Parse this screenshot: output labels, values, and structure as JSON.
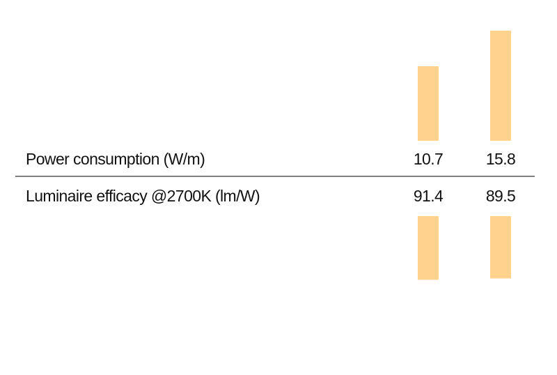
{
  "rows": [
    {
      "label": "Power consumption (W/m)",
      "values": [
        10.7,
        15.8
      ]
    },
    {
      "label": "Luminaire efficacy @2700K (lm/W)",
      "values": [
        91.4,
        89.5
      ]
    }
  ]
}
